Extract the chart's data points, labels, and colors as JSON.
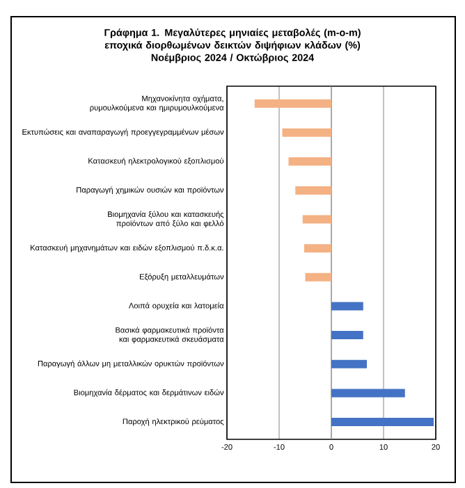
{
  "chart_data": {
    "type": "bar",
    "orientation": "horizontal",
    "title": "Γράφημα 1. Μεγαλύτερες μηνιαίες μεταβολές (m-o-m) εποχικά διορθωμένων δεικτών διψήφιων κλάδων (%)",
    "subtitle": "Νοέμβριος 2024 / Οκτώβριος 2024",
    "categories": [
      "Μηχανοκίνητα οχήματα, ρυμουλκούμενα και ημιρυμουλκούμενα",
      "Εκτυπώσεις και αναπαραγωγή προεγγεγραμμένων μέσων",
      "Κατασκευή ηλεκτρολογικού εξοπλισμού",
      "Παραγωγή χημικών ουσιών και προϊόντων",
      "Βιομηχανία ξύλου και κατασκευής προϊόντων από ξύλο και φελλό",
      "Κατασκευή μηχανημάτων και ειδών εξοπλισμού π.δ.κ.α.",
      "Εξόρυξη μεταλλευμάτων",
      "Λοιπά ορυχεία και λατομεία",
      "Βασικά φαρμακευτικά προϊόντα και φαρμακευτικά σκευάσματα",
      "Παραγωγή άλλων μη μεταλλικών ορυκτών προϊόντων",
      "Βιομηχανία δέρματος και δερμάτινων ειδών",
      "Παροχή ηλεκτρικού ρεύματος"
    ],
    "values": [
      -14.7,
      -9.4,
      -8.2,
      -6.9,
      -5.5,
      -5.2,
      -5.0,
      6.1,
      6.1,
      6.8,
      14.1,
      19.6
    ],
    "colors": [
      "#f4b183",
      "#f4b183",
      "#f4b183",
      "#f4b183",
      "#f4b183",
      "#f4b183",
      "#f4b183",
      "#4472c4",
      "#4472c4",
      "#4472c4",
      "#4472c4",
      "#4472c4"
    ],
    "xlim": [
      -20,
      20
    ],
    "xticks": [
      -20,
      -10,
      0,
      10,
      20
    ],
    "grid": "x"
  }
}
